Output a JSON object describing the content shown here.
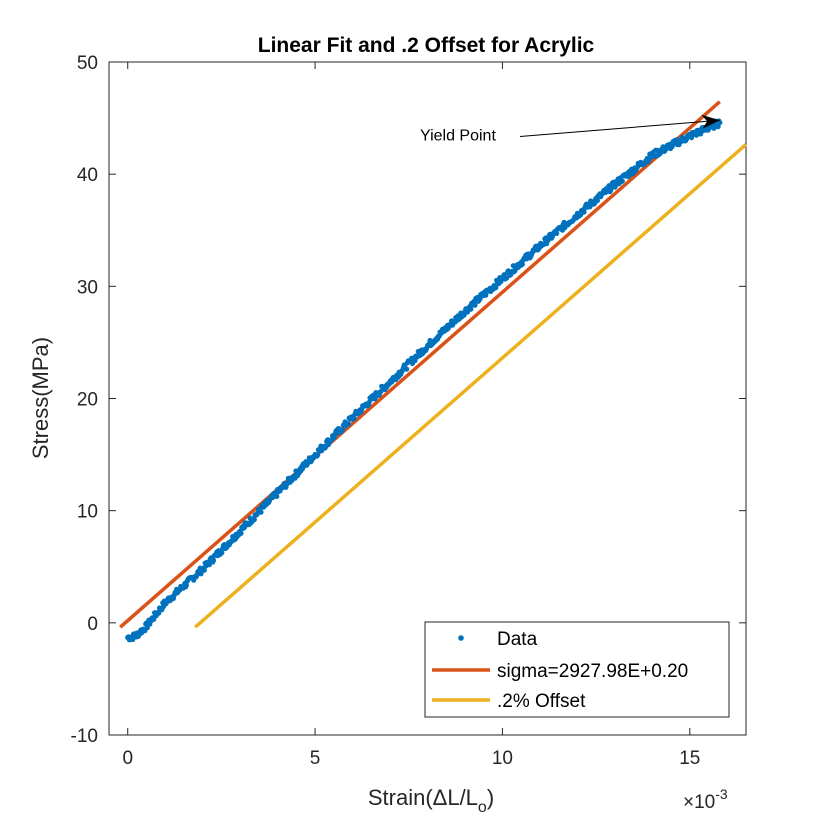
{
  "chart_data": {
    "type": "line",
    "title": "Linear Fit and .2 Offset for Acrylic",
    "xlabel": "Strain(ΔL/L",
    "xlabel_subscript": "o",
    "xlabel_close": ")",
    "ylabel": "Stress(MPa)",
    "x_multiplier_base": "×10",
    "x_multiplier_exponent": "-3",
    "xlim": [
      -0.5,
      16.5
    ],
    "ylim": [
      -10,
      50
    ],
    "xticks": [
      0,
      5,
      10,
      15
    ],
    "xtick_labels": [
      "0",
      "5",
      "10",
      "15"
    ],
    "yticks": [
      -10,
      0,
      10,
      20,
      30,
      40,
      50
    ],
    "ytick_labels": [
      "-10",
      "0",
      "10",
      "20",
      "30",
      "40",
      "50"
    ],
    "grid": false,
    "legend_position": "bottom-right",
    "series": [
      {
        "name": "Data",
        "style": "markers",
        "color": "#0072BD",
        "x": [
          0.0,
          0.2,
          0.5,
          1.0,
          1.5,
          2.0,
          3.0,
          4.0,
          5.0,
          6.0,
          7.0,
          8.0,
          9.0,
          10.0,
          11.0,
          12.0,
          13.0,
          14.0,
          15.0,
          15.8
        ],
        "y": [
          -1.3,
          -1.2,
          -0.3,
          1.8,
          3.3,
          4.8,
          8.2,
          11.6,
          15.0,
          18.3,
          21.5,
          24.7,
          27.8,
          30.7,
          33.6,
          36.4,
          39.1,
          41.7,
          43.4,
          44.6
        ]
      },
      {
        "name": "sigma=2927.98E+0.20",
        "style": "line",
        "color": "#D95319",
        "x": [
          -0.2,
          15.8
        ],
        "y": [
          -0.39,
          46.46
        ]
      },
      {
        "name": ".2% Offset",
        "style": "line",
        "color": "#EDB120",
        "x": [
          1.8,
          16.5
        ],
        "y": [
          -0.39,
          42.65
        ]
      }
    ],
    "annotations": [
      {
        "text": "Yield Point",
        "text_x": 7.8,
        "text_y": 43.0,
        "arrow_to_x": 15.8,
        "arrow_to_y": 44.8
      }
    ]
  }
}
